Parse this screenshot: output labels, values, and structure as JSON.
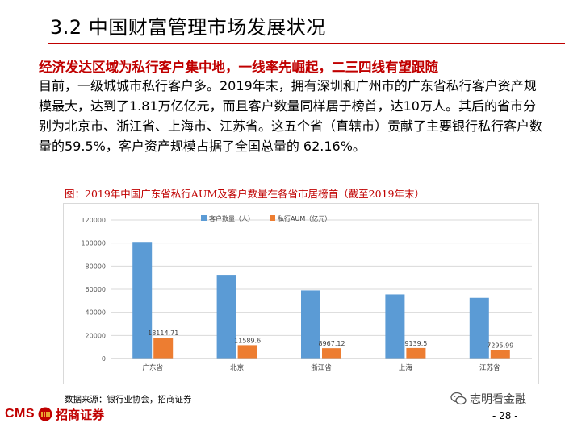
{
  "header": {
    "title": "3.2  中国财富管理市场发展状况"
  },
  "content": {
    "highlight": "经济发达区域为私行客户集中地，一线率先崛起，二三四线有望跟随",
    "paragraph": "目前，一级城城市私行客户多。2019年末，拥有深圳和广州市的广东省私行客户资产规模最大，达到了1.81万亿亿元，而且客户数量同样居于榜首，达10万人。其后的省市分别为北京市、浙江省、上海市、江苏省。这五个省（直辖市）贡献了主要银行私行客户数量的59.5%，客户资产规模占据了全国总量的 62.16%。",
    "caption": "图：2019年中国广东省私行AUM及客户数量在各省市居榜首（截至2019年末）"
  },
  "chart_data": {
    "type": "bar",
    "categories": [
      "广东省",
      "北京",
      "浙江省",
      "上海",
      "江苏省"
    ],
    "series": [
      {
        "name": "客户数量（人）",
        "color": "#5b9bd5",
        "values": [
          101000,
          72500,
          59000,
          55500,
          52500
        ]
      },
      {
        "name": "私行AUM（亿元）",
        "color": "#ed7d31",
        "values": [
          18114.71,
          11589.6,
          8967.12,
          9139.5,
          7295.99
        ]
      }
    ],
    "data_labels": [
      "18114.71",
      "11589.6",
      "8967.12",
      "9139.5",
      "7295.99"
    ],
    "ylim": [
      0,
      120000
    ],
    "yticks": [
      "0",
      "20000",
      "40000",
      "60000",
      "80000",
      "100000",
      "120000"
    ],
    "grid": true,
    "legend_position": "top-left"
  },
  "footer": {
    "source": "数据来源：银行业协会，招商证券",
    "logo_text": "CMS",
    "logo_cn": "招商证券",
    "watermark": "志明看金融",
    "page": "- 28 -"
  },
  "colors": {
    "accent": "#c00000",
    "series1": "#5b9bd5",
    "series2": "#ed7d31"
  }
}
